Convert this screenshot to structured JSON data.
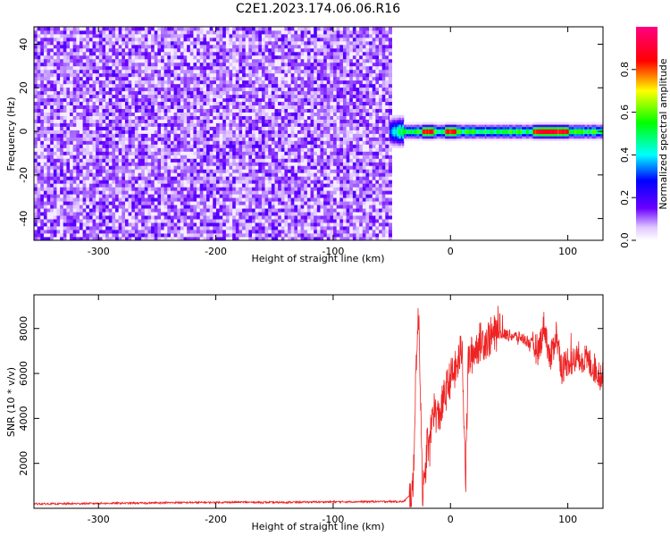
{
  "chart_data": [
    {
      "type": "heatmap",
      "title": "C2E1.2023.174.06.06.R16",
      "xlabel": "Height of straight line (km)",
      "ylabel": "Frequency (Hz)",
      "xlim": [
        -355,
        130
      ],
      "ylim": [
        -50,
        48
      ],
      "x_ticks": [
        -300,
        -200,
        -100,
        0,
        100
      ],
      "y_ticks": [
        -40,
        -20,
        0,
        20,
        40
      ],
      "x_tick_labels": [
        "-300",
        "-200",
        "-100",
        "0",
        "100"
      ],
      "y_tick_labels": [
        "-40",
        "-20",
        "0",
        "20",
        "40"
      ],
      "noise_region": {
        "x_range": [
          -355,
          -50
        ],
        "freq_range": [
          -50,
          48
        ],
        "amplitude": 0.1
      },
      "signal_band": {
        "x_range": [
          -52,
          130
        ],
        "freq_center": 0,
        "half_width_hz": 2.5,
        "peak_amplitude": 1.0
      },
      "colorbar": {
        "label": "Normalized spectral amplitude",
        "range": [
          0,
          1
        ],
        "ticks": [
          0.0,
          0.2,
          0.4,
          0.6,
          0.8
        ],
        "tick_labels": [
          "0.0",
          "0.2",
          "0.4",
          "0.6",
          "0.8"
        ],
        "colors": [
          "#ffffff",
          "#6a00ff",
          "#0000ff",
          "#00ffff",
          "#00ff00",
          "#ffff00",
          "#ff0000",
          "#ff0080"
        ]
      },
      "grid": false
    },
    {
      "type": "line",
      "xlabel": "Height of straight line (km)",
      "ylabel": "SNR (10 * v/v)",
      "xlim": [
        -355,
        130
      ],
      "ylim": [
        0,
        9500
      ],
      "x_ticks": [
        -300,
        -200,
        -100,
        0,
        100
      ],
      "y_ticks": [
        2000,
        4000,
        6000,
        8000
      ],
      "x_tick_labels": [
        "-300",
        "-200",
        "-100",
        "0",
        "100"
      ],
      "y_tick_labels": [
        "2000",
        "4000",
        "6000",
        "8000"
      ],
      "line_color": "#ee2222",
      "grid": false,
      "series": [
        {
          "x": [
            -355,
            -330,
            -300,
            -270,
            -240,
            -210,
            -180,
            -150,
            -120,
            -90,
            -60,
            -40,
            -32,
            -29,
            -27,
            -25,
            -24,
            -22,
            -20,
            -18,
            -15,
            -12,
            -10,
            -5,
            0,
            5,
            10,
            13,
            15,
            20,
            25,
            30,
            40,
            50,
            60,
            70,
            75,
            80,
            85,
            90,
            95,
            100,
            105,
            110,
            120,
            130
          ],
          "y": [
            200,
            200,
            220,
            230,
            250,
            260,
            270,
            260,
            280,
            290,
            300,
            300,
            700,
            7000,
            8500,
            4000,
            1000,
            800,
            3000,
            2500,
            4500,
            4200,
            4000,
            5000,
            5800,
            6200,
            7200,
            1200,
            6500,
            7000,
            7400,
            7500,
            7800,
            7700,
            7600,
            7300,
            7000,
            8200,
            6500,
            7800,
            6200,
            6600,
            6500,
            6800,
            6400,
            5800
          ]
        }
      ]
    }
  ]
}
